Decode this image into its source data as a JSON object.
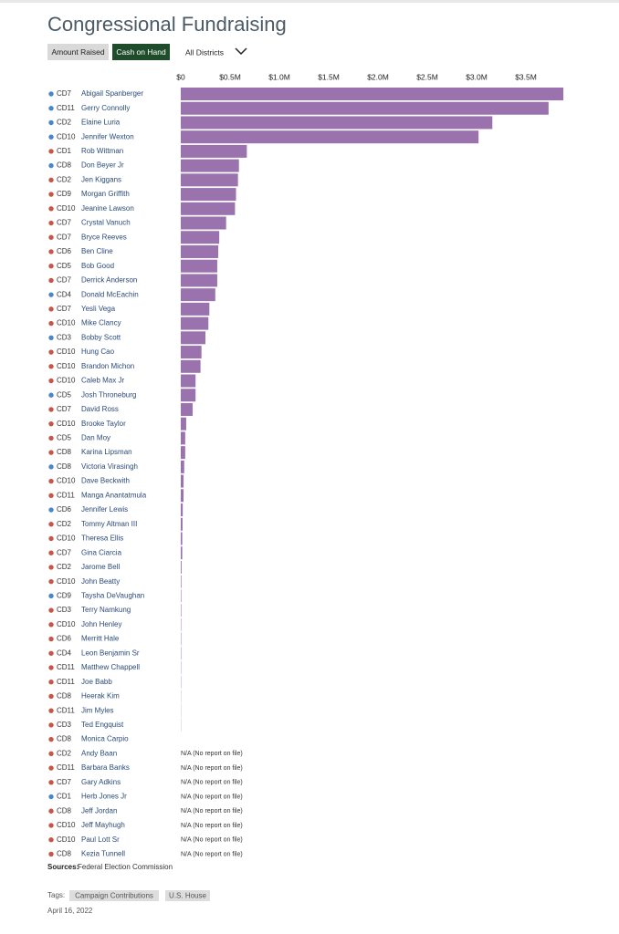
{
  "ui": {
    "sources_label": "Sources:",
    "sources": "Federal Election Commission",
    "tags_label": "Tags:",
    "tags": [
      "Campaign Contributions",
      "U.S. House"
    ],
    "date": "April 16, 2022",
    "buttons": [
      "Amount Raised",
      "Cash on Hand"
    ],
    "dropdown": "All Districts"
  },
  "chart_data": {
    "type": "bar",
    "orientation": "horizontal",
    "title": "Congressional Fundraising",
    "bar_color": "#9a72ae",
    "categories": [
      "Abigail Spanberger",
      "Gerry Connolly",
      "Elaine Luria",
      "Jennifer Wexton",
      "Rob Wittman",
      "Don Beyer Jr",
      "Jen Kiggans",
      "Morgan Griffith",
      "Jeanine Lawson",
      "Crystal Vanuch",
      "Bryce Reeves",
      "Ben Cline",
      "Bob Good",
      "Derrick Anderson",
      "Donald McEachin",
      "Yesli Vega",
      "Mike Clancy",
      "Bobby Scott",
      "Hung Cao",
      "Brandon Michon",
      "Caleb Max Jr",
      "Josh Throneburg",
      "David Ross",
      "Brooke Taylor",
      "Dan Moy",
      "Karina Lipsman",
      "Victoria Virasingh",
      "Dave Beckwith",
      "Manga Anantatmula",
      "Jennifer Lewis",
      "Tommy Altman III",
      "Theresa Ellis",
      "Gina Ciarcia",
      "Jarome Bell",
      "John Beatty",
      "Taysha DeVaughan",
      "Terry Namkung",
      "John Henley",
      "Merritt Hale",
      "Leon Benjamin Sr",
      "Matthew Chappell",
      "Joe Babb",
      "Heerak Kim",
      "Jim Myles",
      "Ted Engquist",
      "Monica Carpio",
      "Andy Baan",
      "Barbara Banks",
      "Gary Adkins",
      "Herb Jones Jr",
      "Jeff Jordan",
      "Jeff Mayhugh",
      "Paul Lott Sr",
      "Kezia Tunnell"
    ],
    "districts": [
      "CD7",
      "CD11",
      "CD2",
      "CD10",
      "CD1",
      "CD8",
      "CD2",
      "CD9",
      "CD10",
      "CD7",
      "CD7",
      "CD6",
      "CD5",
      "CD7",
      "CD4",
      "CD7",
      "CD10",
      "CD3",
      "CD10",
      "CD10",
      "CD10",
      "CD5",
      "CD7",
      "CD10",
      "CD5",
      "CD8",
      "CD8",
      "CD10",
      "CD11",
      "CD6",
      "CD2",
      "CD10",
      "CD7",
      "CD2",
      "CD10",
      "CD9",
      "CD3",
      "CD10",
      "CD6",
      "CD4",
      "CD11",
      "CD11",
      "CD8",
      "CD11",
      "CD3",
      "CD8",
      "CD2",
      "CD11",
      "CD7",
      "CD1",
      "CD8",
      "CD10",
      "CD10",
      "CD8"
    ],
    "dot_colors": [
      "#4a86c8",
      "#4a86c8",
      "#4a86c8",
      "#4a86c8",
      "#c8554a",
      "#4a86c8",
      "#c8554a",
      "#c8554a",
      "#c8554a",
      "#c8554a",
      "#c8554a",
      "#c8554a",
      "#c8554a",
      "#c8554a",
      "#4a86c8",
      "#c8554a",
      "#c8554a",
      "#4a86c8",
      "#c8554a",
      "#c8554a",
      "#c8554a",
      "#4a86c8",
      "#c8554a",
      "#c8554a",
      "#c8554a",
      "#c8554a",
      "#4a86c8",
      "#c8554a",
      "#c8554a",
      "#4a86c8",
      "#c8554a",
      "#c8554a",
      "#c8554a",
      "#c8554a",
      "#c8554a",
      "#4a86c8",
      "#c8554a",
      "#c8554a",
      "#c8554a",
      "#c8554a",
      "#c8554a",
      "#c8554a",
      "#c8554a",
      "#c8554a",
      "#c8554a",
      "#c8554a",
      "#c8554a",
      "#c8554a",
      "#c8554a",
      "#4a86c8",
      "#c8554a",
      "#c8554a",
      "#c8554a",
      "#c8554a"
    ],
    "values": [
      3880000,
      3730000,
      3160000,
      3020000,
      670000,
      590000,
      580000,
      560000,
      550000,
      460000,
      390000,
      380000,
      370000,
      370000,
      350000,
      290000,
      280000,
      250000,
      210000,
      200000,
      150000,
      150000,
      120000,
      55000,
      45000,
      45000,
      35000,
      28000,
      28000,
      20000,
      18000,
      15000,
      15000,
      8000,
      6000,
      5000,
      5000,
      4000,
      4000,
      4000,
      3000,
      3000,
      2000,
      2000,
      2000,
      0,
      null,
      null,
      null,
      null,
      null,
      null,
      null,
      null
    ],
    "value_labels": [
      null,
      null,
      null,
      null,
      null,
      null,
      null,
      null,
      null,
      null,
      null,
      null,
      null,
      null,
      null,
      null,
      null,
      null,
      null,
      null,
      null,
      null,
      null,
      null,
      null,
      null,
      null,
      null,
      null,
      null,
      null,
      null,
      null,
      null,
      null,
      null,
      null,
      null,
      null,
      null,
      null,
      null,
      null,
      null,
      null,
      null,
      "N/A (No report on file)",
      "N/A (No report on file)",
      "N/A (No report on file)",
      "N/A (No report on file)",
      "N/A (No report on file)",
      "N/A (No report on file)",
      "N/A (No report on file)",
      "N/A (No report on file)"
    ],
    "xlim": [
      0,
      3900000
    ],
    "xticks": [
      {
        "value": 0,
        "label": "$0"
      },
      {
        "value": 500000,
        "label": "$0.5M"
      },
      {
        "value": 1000000,
        "label": "$1.0M"
      },
      {
        "value": 1500000,
        "label": "$1.5M"
      },
      {
        "value": 2000000,
        "label": "$2.0M"
      },
      {
        "value": 2500000,
        "label": "$2.5M"
      },
      {
        "value": 3000000,
        "label": "$3.0M"
      },
      {
        "value": 3500000,
        "label": "$3.5M"
      }
    ]
  }
}
